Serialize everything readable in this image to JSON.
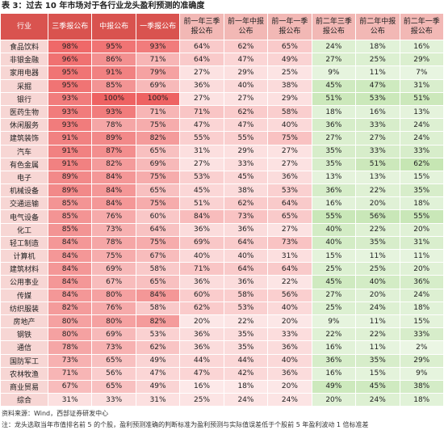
{
  "title": "表 3：过去 10 年市场对于各行业龙头盈利预测的准确度",
  "table": {
    "header": [
      "行业",
      "三季报公布",
      "中报公布",
      "一季报公布",
      "前一年三季报公布",
      "前一年中报公布",
      "前一年一季报公布",
      "前二年三季报公布",
      "前二年中报公布",
      "前二年一季报公布"
    ],
    "rows": [
      [
        "食品饮料",
        "98%",
        "95%",
        "93%",
        "64%",
        "62%",
        "65%",
        "24%",
        "18%",
        "16%"
      ],
      [
        "非银金融",
        "96%",
        "86%",
        "71%",
        "64%",
        "47%",
        "49%",
        "27%",
        "25%",
        "29%"
      ],
      [
        "家用电器",
        "95%",
        "91%",
        "79%",
        "27%",
        "29%",
        "25%",
        "9%",
        "11%",
        "7%"
      ],
      [
        "采掘",
        "95%",
        "85%",
        "69%",
        "36%",
        "40%",
        "38%",
        "45%",
        "47%",
        "31%"
      ],
      [
        "银行",
        "93%",
        "100%",
        "100%",
        "27%",
        "27%",
        "29%",
        "51%",
        "53%",
        "51%"
      ],
      [
        "医药生物",
        "93%",
        "93%",
        "71%",
        "71%",
        "62%",
        "58%",
        "18%",
        "16%",
        "13%"
      ],
      [
        "休闲服务",
        "93%",
        "78%",
        "75%",
        "47%",
        "47%",
        "40%",
        "36%",
        "33%",
        "24%"
      ],
      [
        "建筑装饰",
        "91%",
        "89%",
        "82%",
        "55%",
        "55%",
        "75%",
        "27%",
        "27%",
        "24%"
      ],
      [
        "汽车",
        "91%",
        "87%",
        "65%",
        "31%",
        "29%",
        "27%",
        "35%",
        "33%",
        "33%"
      ],
      [
        "有色金属",
        "91%",
        "82%",
        "69%",
        "27%",
        "33%",
        "27%",
        "35%",
        "51%",
        "62%"
      ],
      [
        "电子",
        "89%",
        "84%",
        "75%",
        "53%",
        "45%",
        "36%",
        "13%",
        "13%",
        "15%"
      ],
      [
        "机械设备",
        "89%",
        "84%",
        "65%",
        "45%",
        "38%",
        "53%",
        "36%",
        "22%",
        "35%"
      ],
      [
        "交通运输",
        "85%",
        "84%",
        "75%",
        "51%",
        "62%",
        "64%",
        "16%",
        "20%",
        "18%"
      ],
      [
        "电气设备",
        "85%",
        "76%",
        "60%",
        "84%",
        "73%",
        "65%",
        "55%",
        "56%",
        "55%"
      ],
      [
        "化工",
        "85%",
        "73%",
        "64%",
        "36%",
        "36%",
        "27%",
        "40%",
        "22%",
        "20%"
      ],
      [
        "轻工制造",
        "84%",
        "78%",
        "75%",
        "69%",
        "64%",
        "73%",
        "40%",
        "35%",
        "31%"
      ],
      [
        "计算机",
        "84%",
        "75%",
        "67%",
        "40%",
        "40%",
        "31%",
        "15%",
        "11%",
        "11%"
      ],
      [
        "建筑材料",
        "84%",
        "69%",
        "58%",
        "71%",
        "64%",
        "64%",
        "25%",
        "25%",
        "20%"
      ],
      [
        "公用事业",
        "84%",
        "67%",
        "65%",
        "36%",
        "36%",
        "22%",
        "45%",
        "40%",
        "36%"
      ],
      [
        "传媒",
        "84%",
        "80%",
        "84%",
        "60%",
        "58%",
        "56%",
        "27%",
        "20%",
        "24%"
      ],
      [
        "纺织服装",
        "82%",
        "76%",
        "58%",
        "62%",
        "53%",
        "40%",
        "25%",
        "24%",
        "18%"
      ],
      [
        "房地产",
        "80%",
        "80%",
        "82%",
        "20%",
        "22%",
        "20%",
        "9%",
        "11%",
        "15%"
      ],
      [
        "钢铁",
        "80%",
        "69%",
        "53%",
        "36%",
        "35%",
        "33%",
        "22%",
        "22%",
        "33%"
      ],
      [
        "通信",
        "78%",
        "73%",
        "62%",
        "36%",
        "35%",
        "36%",
        "16%",
        "11%",
        "2%"
      ],
      [
        "国防军工",
        "73%",
        "65%",
        "49%",
        "44%",
        "44%",
        "40%",
        "36%",
        "35%",
        "29%"
      ],
      [
        "农林牧渔",
        "71%",
        "56%",
        "47%",
        "47%",
        "42%",
        "36%",
        "16%",
        "15%",
        "9%"
      ],
      [
        "商业贸易",
        "67%",
        "65%",
        "49%",
        "16%",
        "18%",
        "20%",
        "49%",
        "45%",
        "38%"
      ],
      [
        "综合",
        "31%",
        "33%",
        "31%",
        "25%",
        "24%",
        "24%",
        "20%",
        "24%",
        "18%"
      ]
    ]
  },
  "source": "资料来源：Wind，西部证券研发中心",
  "note": "注：龙头选取当年市值排名前 5 的个股，盈利预测准确的判断标准为盈利预测与实际值误差低于个股前 5 年盈利波动 1 倍标准差"
}
